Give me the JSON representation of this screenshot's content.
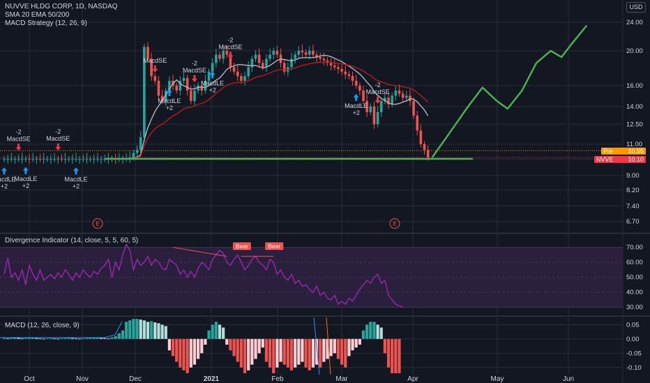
{
  "header": {
    "line1": "NUVVE HLDG CORP, 1D, NASDAQ",
    "line2": "SMA 20 EMA 50/200",
    "line3": "MACD Strategy (12, 26, 9)",
    "currency": "USD"
  },
  "div_indicator": {
    "label": "Divergence Indicator (14, close, 5, 5, 60, 5)"
  },
  "macd": {
    "label": "MACD (12, 26, close, 9)"
  },
  "tags": {
    "pre_label": "Pre",
    "pre_value": "10.55",
    "ticker_label": "NVVE",
    "ticker_value": "10.10"
  },
  "colors": {
    "bg": "#131722",
    "grid": "#2a2e39",
    "up": "#26a69a",
    "down": "#ef5350",
    "sma": "#b2b5be",
    "ema": "#b71c1c",
    "projection": "#4caf50",
    "rsi": "#9c27b0",
    "band": "#2a1f3d",
    "hist_up_dark": "#26a69a",
    "hist_up_light": "#b2dfdb",
    "hist_dn_dark": "#ef5350",
    "hist_dn_light": "#ffcdd2",
    "signal_up": "#2196f3",
    "signal_dn": "#f23645"
  },
  "chart_data": [
    {
      "type": "candlestick",
      "scale": "log",
      "price_axis": [
        "24.00",
        "20.00",
        "16.00",
        "14.00",
        "12.50",
        "11.00",
        "10.00",
        "9.00",
        "8.20",
        "7.40",
        "6.70"
      ],
      "time_axis": [
        "Oct",
        "Nov",
        "Dec",
        "2021",
        "Feb",
        "Mar",
        "Apr",
        "May",
        "Jun"
      ],
      "closes": [
        10.0,
        10.0,
        10.0,
        10.0,
        10.0,
        10.0,
        10.02,
        10.0,
        10.0,
        10.01,
        10.0,
        10.0,
        10.0,
        10.0,
        10.0,
        10.01,
        10.0,
        10.0,
        10.0,
        10.0,
        10.0,
        10.0,
        10.0,
        10.0,
        10.0,
        10.0,
        10.0,
        10.0,
        10.0,
        10.0,
        10.02,
        10.0,
        10.0,
        10.02,
        10.05,
        10.1,
        10.4,
        10.6,
        11.5,
        20.5,
        19.0,
        17.0,
        16.5,
        15.0,
        14.5,
        15.5,
        16.5,
        16.0,
        15.5,
        16.5,
        16.8,
        15.5,
        14.5,
        15.5,
        16.0,
        15.5,
        16.5,
        17.5,
        18.5,
        19.5,
        19.0,
        20.0,
        19.5,
        18.0,
        17.5,
        17.0,
        16.5,
        17.0,
        18.0,
        19.0,
        19.5,
        18.5,
        18.0,
        19.0,
        19.5,
        20.0,
        19.5,
        18.5,
        17.5,
        18.0,
        19.0,
        19.5,
        20.0,
        19.8,
        19.5,
        20.0,
        19.5,
        19.2,
        19.0,
        18.8,
        18.5,
        18.2,
        18.0,
        17.8,
        17.5,
        17.2,
        17.0,
        16.5,
        16.0,
        15.5,
        14.5,
        13.5,
        14.0,
        12.5,
        13.5,
        14.5,
        14.8,
        14.2,
        15.0,
        15.5,
        15.2,
        14.8,
        15.0,
        14.5,
        13.2,
        12.0,
        11.0,
        10.6,
        10.1
      ],
      "sma_first": 35,
      "ema_first": 35,
      "projection": [
        [
          10.1,
          0
        ],
        [
          11.5,
          4
        ],
        [
          14.0,
          10
        ],
        [
          15.8,
          14
        ],
        [
          14.5,
          18
        ],
        [
          13.8,
          21
        ],
        [
          15.5,
          25
        ],
        [
          18.5,
          29
        ],
        [
          20.0,
          33
        ],
        [
          19.2,
          36
        ],
        [
          21.0,
          39
        ],
        [
          23.5,
          43
        ]
      ],
      "support_line": 10.1,
      "pre_market": 10.55,
      "last": 10.1,
      "earnings_markers": [
        "E",
        "E"
      ],
      "signals": [
        {
          "i": 0,
          "dir": "up",
          "text": [
            "MacdLE",
            "+2"
          ],
          "side": "under"
        },
        {
          "i": 4,
          "dir": "dn",
          "text": [
            "-2",
            "MacdSE"
          ],
          "side": "over"
        },
        {
          "i": 6,
          "dir": "up",
          "text": [
            "MacdLE",
            "+2"
          ],
          "side": "under"
        },
        {
          "i": 15,
          "dir": "dn",
          "text": [
            "-2",
            "MacdSE"
          ],
          "side": "over"
        },
        {
          "i": 20,
          "dir": "up",
          "text": [
            "MacdLE",
            "+2"
          ],
          "side": "under"
        },
        {
          "i": 42,
          "dir": "dn",
          "text": [
            "MacdSE"
          ],
          "side": "over"
        },
        {
          "i": 46,
          "dir": "up",
          "text": [
            "MacdLE",
            "+2"
          ],
          "side": "under"
        },
        {
          "i": 53,
          "dir": "dn",
          "text": [
            "-2",
            "MacdSE"
          ],
          "side": "over"
        },
        {
          "i": 58,
          "dir": "up",
          "text": [
            "MacdLE",
            "+2"
          ],
          "side": "under"
        },
        {
          "i": 63,
          "dir": "dn",
          "text": [
            "-2",
            "MacdSE"
          ],
          "side": "over"
        },
        {
          "i": 98,
          "dir": "up",
          "text": [
            "MacdLE",
            "+2"
          ],
          "side": "under"
        },
        {
          "i": 104,
          "dir": "dn",
          "text": [
            "-2",
            "MacdSE"
          ],
          "side": "over"
        }
      ]
    },
    {
      "type": "line",
      "name": "Divergence Indicator",
      "yticks": [
        "70.00",
        "60.00",
        "50.00",
        "40.00",
        "30.00"
      ],
      "ylim": [
        25,
        78
      ],
      "band": [
        30,
        70
      ],
      "values": [
        52,
        63,
        50,
        53,
        48,
        55,
        45,
        58,
        52,
        48,
        55,
        48,
        50,
        52,
        49,
        53,
        50,
        55,
        52,
        48,
        53,
        50,
        55,
        52,
        50,
        54,
        52,
        56,
        58,
        62,
        50,
        60,
        55,
        65,
        72,
        68,
        55,
        62,
        58,
        60,
        64,
        58,
        62,
        60,
        56,
        55,
        62,
        60,
        58,
        52,
        55,
        50,
        54,
        50,
        56,
        60,
        58,
        55,
        62,
        65,
        68,
        66,
        60,
        58,
        62,
        65,
        60,
        55,
        58,
        62,
        64,
        60,
        58,
        55,
        62,
        60,
        52,
        55,
        50,
        48,
        52,
        46,
        48,
        44,
        45,
        42,
        40,
        44,
        38,
        40,
        36,
        35,
        38,
        32,
        34,
        32,
        36,
        34,
        38,
        42,
        45,
        48,
        46,
        50,
        52,
        46,
        48,
        38,
        35,
        32,
        31,
        30
      ],
      "signals": [
        {
          "i": 66,
          "text": "Bear"
        },
        {
          "i": 75,
          "text": "Bear"
        }
      ]
    },
    {
      "type": "bar",
      "name": "MACD",
      "yticks": [
        "0.05",
        "0.00",
        "-0.05",
        "-0.10"
      ],
      "ylim": [
        -0.125,
        0.075
      ],
      "values": [
        0.003,
        0.002,
        0.004,
        0.006,
        0.004,
        0.002,
        0.003,
        0.004,
        0.005,
        0.003,
        0.002,
        0.001,
        0.002,
        0.003,
        0.002,
        0.001,
        0.002,
        0.003,
        0.004,
        0.003,
        0.002,
        0.001,
        0.002,
        0.003,
        0.004,
        0.005,
        0.006,
        0.004,
        0.003,
        0.002,
        0.006,
        0.01,
        0.02,
        0.03,
        0.06,
        0.065,
        0.07,
        0.07,
        0.068,
        0.065,
        0.06,
        0.062,
        0.058,
        0.055,
        0.05,
        0.045,
        -0.04,
        -0.06,
        -0.08,
        -0.1,
        -0.11,
        -0.12,
        -0.1,
        -0.09,
        -0.07,
        -0.05,
        -0.02,
        0.03,
        0.05,
        0.06,
        0.05,
        0.04,
        -0.02,
        -0.04,
        -0.06,
        -0.08,
        -0.1,
        -0.12,
        -0.11,
        -0.09,
        -0.07,
        -0.05,
        -0.03,
        -0.08,
        -0.1,
        -0.12,
        -0.1,
        -0.08,
        -0.09,
        -0.1,
        -0.11,
        -0.1,
        -0.09,
        -0.08,
        -0.1,
        -0.11,
        -0.1,
        -0.09,
        -0.1,
        -0.08,
        -0.07,
        -0.06,
        -0.05,
        -0.07,
        -0.09,
        -0.1,
        -0.06,
        -0.04,
        -0.03,
        -0.02,
        0.03,
        0.05,
        0.06,
        0.06,
        0.05,
        0.04,
        -0.05,
        -0.1,
        -0.12,
        -0.12,
        -0.12
      ]
    }
  ]
}
